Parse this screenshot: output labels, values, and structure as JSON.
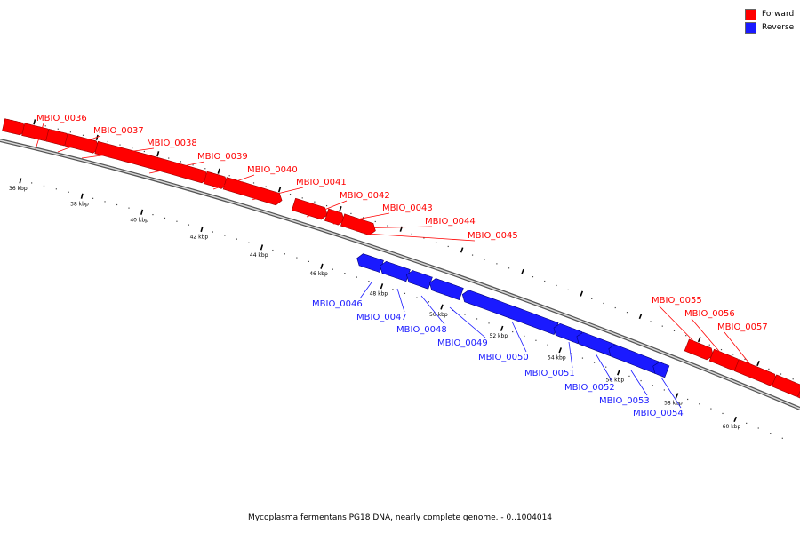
{
  "legend": {
    "forward": {
      "label": "Forward",
      "color": "#ff0000"
    },
    "reverse": {
      "label": "Reverse",
      "color": "#1a1aff"
    }
  },
  "caption": "Mycoplasma fermentans PG18 DNA, nearly complete genome. - 0..1004014",
  "ticks": [
    "36 kbp",
    "38 kbp",
    "40 kbp",
    "42 kbp",
    "44 kbp",
    "46 kbp",
    "48 kbp",
    "50 kbp",
    "52 kbp",
    "54 kbp",
    "56 kbp",
    "58 kbp",
    "60 kbp"
  ],
  "genes": [
    {
      "label": "MBIO_0036",
      "strand": "forward"
    },
    {
      "label": "MBIO_0037",
      "strand": "forward"
    },
    {
      "label": "MBIO_0038",
      "strand": "forward"
    },
    {
      "label": "MBIO_0039",
      "strand": "forward"
    },
    {
      "label": "MBIO_0040",
      "strand": "forward"
    },
    {
      "label": "MBIO_0041",
      "strand": "forward"
    },
    {
      "label": "MBIO_0042",
      "strand": "forward"
    },
    {
      "label": "MBIO_0043",
      "strand": "forward"
    },
    {
      "label": "MBIO_0044",
      "strand": "forward"
    },
    {
      "label": "MBIO_0045",
      "strand": "forward"
    },
    {
      "label": "MBIO_0046",
      "strand": "reverse"
    },
    {
      "label": "MBIO_0047",
      "strand": "reverse"
    },
    {
      "label": "MBIO_0048",
      "strand": "reverse"
    },
    {
      "label": "MBIO_0049",
      "strand": "reverse"
    },
    {
      "label": "MBIO_0050",
      "strand": "reverse"
    },
    {
      "label": "MBIO_0051",
      "strand": "reverse"
    },
    {
      "label": "MBIO_0052",
      "strand": "reverse"
    },
    {
      "label": "MBIO_0053",
      "strand": "reverse"
    },
    {
      "label": "MBIO_0054",
      "strand": "reverse"
    },
    {
      "label": "MBIO_0055",
      "strand": "forward"
    },
    {
      "label": "MBIO_0056",
      "strand": "forward"
    },
    {
      "label": "MBIO_0057",
      "strand": "forward"
    }
  ]
}
